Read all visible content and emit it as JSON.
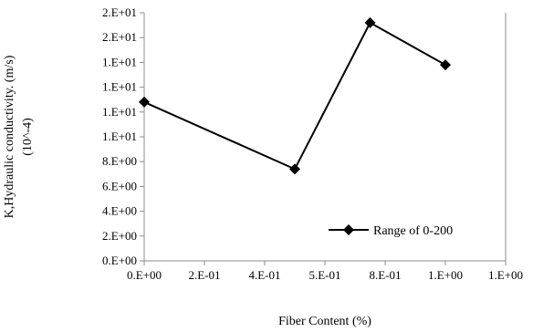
{
  "chart_data": {
    "type": "line",
    "title": "",
    "xlabel": "Fiber Content (%)",
    "ylabel_line1": "K,Hydraulic conductivity. (m/s)",
    "ylabel_line2": "(10^-4)",
    "x_tick_labels": [
      "0.E+00",
      "2.E-01",
      "4.E-01",
      "5.E-01",
      "8.E-01",
      "1.E+00",
      "1.E+00"
    ],
    "y_tick_labels": [
      "0.E+00",
      "2.E+00",
      "4.E+00",
      "6.E+00",
      "8.E+00",
      "1.E+01",
      "1.E+01",
      "1.E+01",
      "1.E+01",
      "2.E+01",
      "2.E+01"
    ],
    "xlim": [
      0,
      1.2
    ],
    "ylim": [
      0,
      20
    ],
    "grid": false,
    "legend_position": "bottom-right",
    "series": [
      {
        "name": "Range of 0-200",
        "color": "#000000",
        "marker": "diamond",
        "x": [
          0,
          0.5,
          0.75,
          1.0
        ],
        "y": [
          12.8,
          7.4,
          19.2,
          15.8
        ]
      }
    ]
  }
}
